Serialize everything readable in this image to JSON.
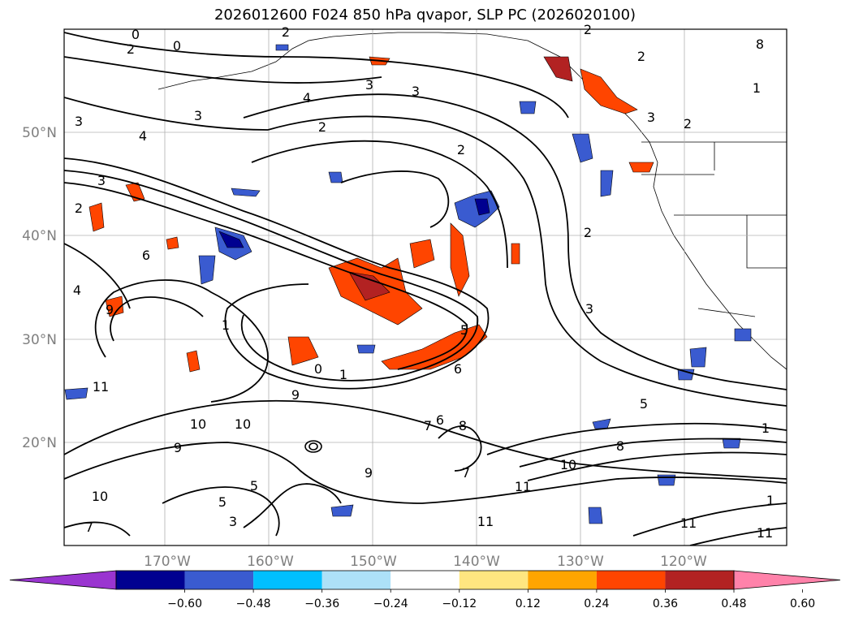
{
  "title": "2026012600 F024 850 hPa qvapor, SLP PC (2026020100)",
  "lat_labels": [
    "50°N",
    "40°N",
    "30°N",
    "20°N"
  ],
  "lon_labels": [
    "170°W",
    "160°W",
    "150°W",
    "140°W",
    "130°W",
    "120°W"
  ],
  "colorbar": {
    "colors": [
      "#9a35d0",
      "#000090",
      "#3a5bd0",
      "#00bfff",
      "#ade1f8",
      "#ffffff",
      "#ffe680",
      "#ffa500",
      "#ff4500",
      "#b22222",
      "#ff82aa"
    ],
    "tick_labels": [
      "−0.60",
      "−0.48",
      "−0.36",
      "−0.24",
      "−0.12",
      "0.12",
      "0.24",
      "0.36",
      "0.48",
      "0.60"
    ]
  },
  "contour_labels": [
    "0",
    "2",
    "0",
    "2",
    "3",
    "4",
    "3",
    "2",
    "4",
    "3",
    "3",
    "2",
    "2",
    "8",
    "1",
    "2",
    "2",
    "3",
    "2",
    "3",
    "6",
    "3",
    "9",
    "1",
    "0",
    "1",
    "9",
    "11",
    "10",
    "10",
    "9",
    "8",
    "7",
    "7",
    "10",
    "11",
    "11",
    "11",
    "5",
    "2",
    "6",
    "9",
    "11",
    "5",
    "8",
    "6",
    "7",
    "10",
    "1",
    "4",
    "5",
    "3",
    "5",
    "1"
  ]
}
